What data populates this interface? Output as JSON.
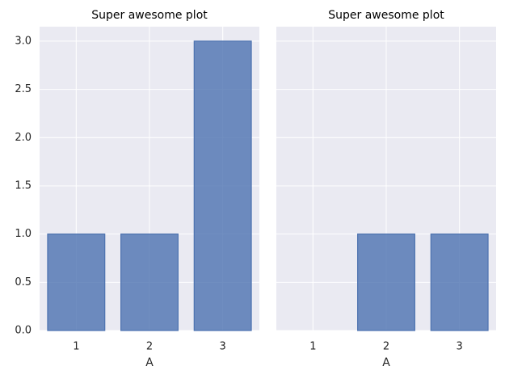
{
  "chart_data": [
    {
      "type": "bar",
      "title": "Super awesome plot",
      "xlabel": "A",
      "categories": [
        "1",
        "2",
        "3"
      ],
      "values": [
        1,
        1,
        3
      ],
      "color": "#4c72b0",
      "ylim": [
        0,
        3.15
      ],
      "yticks": [
        {
          "value": 0,
          "label": "0.0"
        },
        {
          "value": 0.5,
          "label": "0.5"
        },
        {
          "value": 1,
          "label": "1.0"
        },
        {
          "value": 1.5,
          "label": "1.5"
        },
        {
          "value": 2,
          "label": "2.0"
        },
        {
          "value": 2.5,
          "label": "2.5"
        },
        {
          "value": 3,
          "label": "3.0"
        }
      ],
      "ytick_labels": true,
      "grid": true
    },
    {
      "type": "bar",
      "title": "Super awesome plot",
      "xlabel": "A",
      "categories": [
        "1",
        "2",
        "3"
      ],
      "values": [
        0,
        1,
        1
      ],
      "color": "#4c72b0",
      "ylim": [
        0,
        3.15
      ],
      "yticks": [
        0,
        0.5,
        1,
        1.5,
        2,
        2.5,
        3
      ],
      "ytick_labels": false,
      "grid": true
    }
  ]
}
